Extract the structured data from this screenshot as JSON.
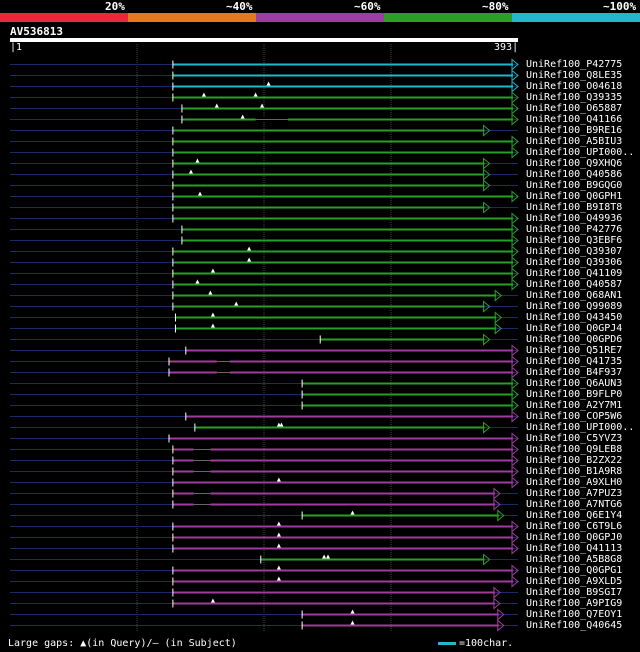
{
  "legend": {
    "segments": [
      {
        "label": "20%",
        "color": "#e8283c"
      },
      {
        "label": "~40%",
        "color": "#e8781e"
      },
      {
        "label": "~60%",
        "color": "#a03c9c"
      },
      {
        "label": "~80%",
        "color": "#28a028"
      },
      {
        "label": "~100%",
        "color": "#22b8c8"
      }
    ]
  },
  "query": {
    "id": "AV536813",
    "start_label": "1",
    "end_label": "393"
  },
  "axis": {
    "length": 393
  },
  "hits": [
    {
      "label": "UniRef100_P42775",
      "color": "#22b8c8",
      "start": 126,
      "end": 393,
      "gaps": [],
      "qmarks": []
    },
    {
      "label": "UniRef100_Q8LE35",
      "color": "#22b8c8",
      "start": 126,
      "end": 393,
      "gaps": [],
      "qmarks": []
    },
    {
      "label": "UniRef100_O04618",
      "color": "#22b8c8",
      "start": 126,
      "end": 393,
      "gaps": [],
      "qmarks": [
        200
      ]
    },
    {
      "label": "UniRef100_Q39335",
      "color": "#28a028",
      "start": 126,
      "end": 393,
      "gaps": [],
      "qmarks": [
        150,
        190
      ]
    },
    {
      "label": "UniRef100_O65887",
      "color": "#28a028",
      "start": 133,
      "end": 393,
      "gaps": [],
      "qmarks": [
        160,
        195
      ]
    },
    {
      "label": "UniRef100_Q41166",
      "color": "#28a028",
      "start": 133,
      "end": 393,
      "gaps": [
        [
          190,
          215
        ]
      ],
      "qmarks": [
        180
      ]
    },
    {
      "label": "UniRef100_B9RE16",
      "color": "#28a028",
      "start": 126,
      "end": 371,
      "gaps": [],
      "qmarks": []
    },
    {
      "label": "UniRef100_A5BIU3",
      "color": "#28a028",
      "start": 126,
      "end": 393,
      "gaps": [],
      "qmarks": []
    },
    {
      "label": "UniRef100_UPI000..",
      "color": "#28a028",
      "start": 126,
      "end": 393,
      "gaps": [],
      "qmarks": []
    },
    {
      "label": "UniRef100_Q9XHQ6",
      "color": "#28a028",
      "start": 126,
      "end": 371,
      "gaps": [],
      "qmarks": [
        145
      ]
    },
    {
      "label": "UniRef100_Q40586",
      "color": "#28a028",
      "start": 126,
      "end": 371,
      "gaps": [],
      "qmarks": [
        140
      ]
    },
    {
      "label": "UniRef100_B9GQG0",
      "color": "#28a028",
      "start": 126,
      "end": 371,
      "gaps": [],
      "qmarks": []
    },
    {
      "label": "UniRef100_Q0GPH1",
      "color": "#28a028",
      "start": 126,
      "end": 393,
      "gaps": [],
      "qmarks": [
        147
      ]
    },
    {
      "label": "UniRef100_B9I8T8",
      "color": "#28a028",
      "start": 126,
      "end": 371,
      "gaps": [],
      "qmarks": []
    },
    {
      "label": "UniRef100_Q49936",
      "color": "#28a028",
      "start": 126,
      "end": 393,
      "gaps": [],
      "qmarks": []
    },
    {
      "label": "UniRef100_P42776",
      "color": "#28a028",
      "start": 133,
      "end": 393,
      "gaps": [],
      "qmarks": []
    },
    {
      "label": "UniRef100_Q3EBF6",
      "color": "#28a028",
      "start": 133,
      "end": 393,
      "gaps": [],
      "qmarks": []
    },
    {
      "label": "UniRef100_Q39307",
      "color": "#28a028",
      "start": 126,
      "end": 393,
      "gaps": [],
      "qmarks": [
        185
      ]
    },
    {
      "label": "UniRef100_Q39306",
      "color": "#28a028",
      "start": 126,
      "end": 393,
      "gaps": [],
      "qmarks": [
        185
      ]
    },
    {
      "label": "UniRef100_Q41109",
      "color": "#28a028",
      "start": 126,
      "end": 393,
      "gaps": [],
      "qmarks": [
        157
      ]
    },
    {
      "label": "UniRef100_Q40587",
      "color": "#28a028",
      "start": 126,
      "end": 393,
      "gaps": [],
      "qmarks": [
        145
      ]
    },
    {
      "label": "UniRef100_Q68AN1",
      "color": "#28a028",
      "start": 126,
      "end": 380,
      "gaps": [],
      "qmarks": [
        155
      ]
    },
    {
      "label": "UniRef100_Q99089",
      "color": "#28a028",
      "start": 126,
      "end": 371,
      "gaps": [],
      "qmarks": [
        175
      ]
    },
    {
      "label": "UniRef100_Q43450",
      "color": "#28a028",
      "start": 128,
      "end": 380,
      "gaps": [],
      "qmarks": [
        157
      ]
    },
    {
      "label": "UniRef100_Q0GPJ4",
      "color": "#28a028",
      "start": 128,
      "end": 380,
      "gaps": [],
      "qmarks": [
        157
      ]
    },
    {
      "label": "UniRef100_Q0GPD6",
      "color": "#28a028",
      "start": 240,
      "end": 371,
      "gaps": [],
      "qmarks": []
    },
    {
      "label": "UniRef100_Q51RE7",
      "color": "#a03c9c",
      "start": 136,
      "end": 393,
      "gaps": [],
      "qmarks": []
    },
    {
      "label": "UniRef100_Q41735",
      "color": "#a03c9c",
      "start": 123,
      "end": 393,
      "gaps": [
        [
          160,
          170
        ]
      ],
      "qmarks": []
    },
    {
      "label": "UniRef100_B4F937",
      "color": "#a03c9c",
      "start": 123,
      "end": 393,
      "gaps": [
        [
          160,
          170
        ]
      ],
      "qmarks": []
    },
    {
      "label": "UniRef100_Q6AUN3",
      "color": "#28a028",
      "start": 226,
      "end": 393,
      "gaps": [],
      "qmarks": []
    },
    {
      "label": "UniRef100_B9FLP0",
      "color": "#28a028",
      "start": 226,
      "end": 393,
      "gaps": [],
      "qmarks": []
    },
    {
      "label": "UniRef100_A2Y7M1",
      "color": "#28a028",
      "start": 226,
      "end": 393,
      "gaps": [],
      "qmarks": []
    },
    {
      "label": "UniRef100_COP5W6",
      "color": "#a03c9c",
      "start": 136,
      "end": 393,
      "gaps": [],
      "qmarks": []
    },
    {
      "label": "UniRef100_UPI000..",
      "color": "#28a028",
      "start": 143,
      "end": 371,
      "gaps": [],
      "qmarks": [
        208,
        210
      ]
    },
    {
      "label": "UniRef100_C5YVZ3",
      "color": "#a03c9c",
      "start": 123,
      "end": 393,
      "gaps": [],
      "qmarks": []
    },
    {
      "label": "UniRef100_Q9LEB8",
      "color": "#a03c9c",
      "start": 126,
      "end": 393,
      "gaps": [
        [
          142,
          155
        ]
      ],
      "qmarks": []
    },
    {
      "label": "UniRef100_B2ZX22",
      "color": "#a03c9c",
      "start": 126,
      "end": 393,
      "gaps": [
        [
          142,
          155
        ]
      ],
      "qmarks": []
    },
    {
      "label": "UniRef100_B1A9R8",
      "color": "#a03c9c",
      "start": 126,
      "end": 393,
      "gaps": [
        [
          142,
          155
        ]
      ],
      "qmarks": []
    },
    {
      "label": "UniRef100_A9XLH0",
      "color": "#a03c9c",
      "start": 126,
      "end": 393,
      "gaps": [],
      "qmarks": [
        208
      ]
    },
    {
      "label": "UniRef100_A7PUZ3",
      "color": "#a03c9c",
      "start": 126,
      "end": 379,
      "gaps": [
        [
          142,
          155
        ]
      ],
      "qmarks": []
    },
    {
      "label": "UniRef100_A7NTG6",
      "color": "#a03c9c",
      "start": 126,
      "end": 379,
      "gaps": [
        [
          142,
          155
        ]
      ],
      "qmarks": []
    },
    {
      "label": "UniRef100_Q6E1Y4",
      "color": "#28a028",
      "start": 226,
      "end": 382,
      "gaps": [],
      "qmarks": [
        265
      ]
    },
    {
      "label": "UniRef100_C6T9L6",
      "color": "#a03c9c",
      "start": 126,
      "end": 393,
      "gaps": [],
      "qmarks": [
        208
      ]
    },
    {
      "label": "UniRef100_Q0GPJ0",
      "color": "#a03c9c",
      "start": 126,
      "end": 393,
      "gaps": [],
      "qmarks": [
        208
      ]
    },
    {
      "label": "UniRef100_Q41113",
      "color": "#a03c9c",
      "start": 126,
      "end": 393,
      "gaps": [],
      "qmarks": [
        208
      ]
    },
    {
      "label": "UniRef100_A5B8G8",
      "color": "#28a028",
      "start": 194,
      "end": 371,
      "gaps": [],
      "qmarks": [
        243,
        246
      ]
    },
    {
      "label": "UniRef100_Q0GPG1",
      "color": "#a03c9c",
      "start": 126,
      "end": 393,
      "gaps": [],
      "qmarks": [
        208
      ]
    },
    {
      "label": "UniRef100_A9XLD5",
      "color": "#a03c9c",
      "start": 126,
      "end": 393,
      "gaps": [],
      "qmarks": [
        208
      ]
    },
    {
      "label": "UniRef100_B9SGI7",
      "color": "#a03c9c",
      "start": 126,
      "end": 379,
      "gaps": [],
      "qmarks": []
    },
    {
      "label": "UniRef100_A9PIG9",
      "color": "#a03c9c",
      "start": 126,
      "end": 379,
      "gaps": [],
      "qmarks": [
        157
      ]
    },
    {
      "label": "UniRef100_Q7EOY1",
      "color": "#a03c9c",
      "start": 226,
      "end": 382,
      "gaps": [],
      "qmarks": [
        265
      ]
    },
    {
      "label": "UniRef100_Q40645",
      "color": "#a03c9c",
      "start": 226,
      "end": 382,
      "gaps": [],
      "qmarks": [
        265
      ]
    }
  ],
  "extensions": {
    "UniRef100_P42775": [
      390,
      417
    ],
    "UniRef100_Q8LE35": [
      390,
      417
    ],
    "UniRef100_O04618": [
      390,
      417
    ],
    "UniRef100_Q39335": [
      390,
      417
    ],
    "UniRef100_O65887": [
      390,
      417
    ],
    "UniRef100_Q41166": [
      390,
      417
    ]
  },
  "footer": {
    "gaps_legend": "Large gaps: ▲(in Query)/– (in Subject)",
    "scale_label": "=100char."
  }
}
